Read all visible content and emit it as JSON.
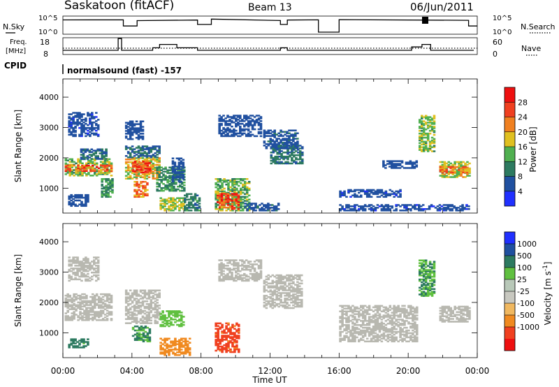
{
  "header": {
    "title": "Saskatoon (fitACF)",
    "beam": "Beam 13",
    "date": "06/Jun/2011"
  },
  "status_panels": {
    "nsky_label": "N.Sky",
    "nsky_ticks": [
      "10^5",
      "10^0"
    ],
    "nsearch_label": "N.Search",
    "nsearch_ticks": [
      "10^5",
      "10^0"
    ],
    "freq_label_1": "Freq.",
    "freq_label_2": "[MHz]",
    "freq_ticks": [
      "18",
      "8"
    ],
    "nave_label": "Nave",
    "nave_ticks": [
      "60",
      "0"
    ],
    "cpid_label": "CPID",
    "cpid_text": "normalsound (fast) -157"
  },
  "colors": {
    "power": [
      "#2030ff",
      "#2050a0",
      "#2d7a60",
      "#50b050",
      "#e0c020",
      "#f08020",
      "#f04020",
      "#ee1010"
    ],
    "velocity": [
      "#ee1010",
      "#f04020",
      "#f08a20",
      "#f0b860",
      "#c8c8c0",
      "#b8c8b8",
      "#60c040",
      "#2d7a60",
      "#2050a0",
      "#2030ff"
    ],
    "ground_scatter": "#b8b8b0"
  },
  "chart_data": [
    {
      "type": "heatmap",
      "name": "Power",
      "xlabel": "",
      "ylabel": "Slant Range [km]",
      "x_ticks": [
        "00:00",
        "04:00",
        "08:00",
        "12:00",
        "16:00",
        "20:00",
        "00:00"
      ],
      "y_ticks": [
        1000,
        2000,
        3000,
        4000
      ],
      "xlim_hours": [
        0,
        24
      ],
      "ylim_km": [
        180,
        4600
      ],
      "colorbar": {
        "label": "Power [dB]",
        "ticks": [
          4,
          8,
          12,
          16,
          20,
          24,
          28
        ],
        "range": [
          0,
          32
        ]
      },
      "regions": [
        {
          "t": [
            0.1,
            2.8
          ],
          "r": [
            1400,
            1950
          ],
          "v": 15
        },
        {
          "t": [
            0.1,
            2.8
          ],
          "r": [
            1550,
            1750
          ],
          "v": 25
        },
        {
          "t": [
            1.0,
            2.5
          ],
          "r": [
            1950,
            2300
          ],
          "v": 8
        },
        {
          "t": [
            0.3,
            2.0
          ],
          "r": [
            2700,
            3500
          ],
          "v": 5
        },
        {
          "t": [
            2.2,
            2.9
          ],
          "r": [
            700,
            1300
          ],
          "v": 12
        },
        {
          "t": [
            0.3,
            1.5
          ],
          "r": [
            400,
            800
          ],
          "v": 6
        },
        {
          "t": [
            3.6,
            5.6
          ],
          "r": [
            1300,
            2000
          ],
          "v": 18
        },
        {
          "t": [
            4.0,
            5.0
          ],
          "r": [
            1500,
            1900
          ],
          "v": 27
        },
        {
          "t": [
            3.6,
            5.6
          ],
          "r": [
            2000,
            2400
          ],
          "v": 8
        },
        {
          "t": [
            3.6,
            4.6
          ],
          "r": [
            2600,
            3200
          ],
          "v": 6
        },
        {
          "t": [
            4.1,
            4.9
          ],
          "r": [
            700,
            1200
          ],
          "v": 22
        },
        {
          "t": [
            5.4,
            7.0
          ],
          "r": [
            900,
            1700
          ],
          "v": 11
        },
        {
          "t": [
            5.6,
            7.0
          ],
          "r": [
            250,
            700
          ],
          "v": 16
        },
        {
          "t": [
            6.3,
            7.0
          ],
          "r": [
            1200,
            2000
          ],
          "v": 6
        },
        {
          "t": [
            7.0,
            7.9
          ],
          "r": [
            250,
            800
          ],
          "v": 10
        },
        {
          "t": [
            8.8,
            10.8
          ],
          "r": [
            250,
            1300
          ],
          "v": 14
        },
        {
          "t": [
            8.9,
            10.2
          ],
          "r": [
            300,
            800
          ],
          "v": 26
        },
        {
          "t": [
            9.0,
            11.5
          ],
          "r": [
            2700,
            3400
          ],
          "v": 6
        },
        {
          "t": [
            10.5,
            12.5
          ],
          "r": [
            250,
            500
          ],
          "v": 7
        },
        {
          "t": [
            12.0,
            13.8
          ],
          "r": [
            1800,
            2400
          ],
          "v": 9
        },
        {
          "t": [
            11.6,
            13.6
          ],
          "r": [
            2300,
            2900
          ],
          "v": 7
        },
        {
          "t": [
            16.0,
            19.5
          ],
          "r": [
            700,
            950
          ],
          "v": 5
        },
        {
          "t": [
            18.5,
            20.5
          ],
          "r": [
            1650,
            1900
          ],
          "v": 6
        },
        {
          "t": [
            20.6,
            21.5
          ],
          "r": [
            2200,
            3400
          ],
          "v": 15
        },
        {
          "t": [
            21.8,
            23.5
          ],
          "r": [
            1350,
            1850
          ],
          "v": 17
        },
        {
          "t": [
            21.8,
            23.5
          ],
          "r": [
            1500,
            1700
          ],
          "v": 22
        },
        {
          "t": [
            16.0,
            23.5
          ],
          "r": [
            250,
            450
          ],
          "v": 5
        }
      ]
    },
    {
      "type": "heatmap",
      "name": "Velocity",
      "xlabel": "Time UT",
      "ylabel": "Slant Range [km]",
      "x_ticks": [
        "00:00",
        "04:00",
        "08:00",
        "12:00",
        "16:00",
        "20:00",
        "00:00"
      ],
      "y_ticks": [
        1000,
        2000,
        3000,
        4000
      ],
      "xlim_hours": [
        0,
        24
      ],
      "ylim_km": [
        180,
        4600
      ],
      "colorbar": {
        "label": "Velocity [m s",
        "ticks": [
          "1000",
          "500",
          "100",
          "25",
          "-25",
          "-100",
          "-500",
          "-1000"
        ]
      },
      "regions": [
        {
          "t": [
            0.1,
            2.8
          ],
          "r": [
            1400,
            2300
          ],
          "v": 10
        },
        {
          "t": [
            0.3,
            1.5
          ],
          "r": [
            500,
            800
          ],
          "v": 250
        },
        {
          "t": [
            0.3,
            2.0
          ],
          "r": [
            2700,
            3500
          ],
          "v": 10
        },
        {
          "t": [
            3.6,
            5.6
          ],
          "r": [
            1300,
            2400
          ],
          "v": 10
        },
        {
          "t": [
            4.0,
            5.0
          ],
          "r": [
            700,
            1200
          ],
          "v": 200
        },
        {
          "t": [
            5.6,
            7.0
          ],
          "r": [
            1200,
            1700
          ],
          "v": 150
        },
        {
          "t": [
            5.6,
            7.4
          ],
          "r": [
            250,
            800
          ],
          "v": -150
        },
        {
          "t": [
            8.8,
            10.2
          ],
          "r": [
            350,
            1300
          ],
          "v": -250
        },
        {
          "t": [
            9.0,
            11.5
          ],
          "r": [
            2700,
            3400
          ],
          "v": 10
        },
        {
          "t": [
            11.6,
            13.8
          ],
          "r": [
            1800,
            2900
          ],
          "v": 10
        },
        {
          "t": [
            16.0,
            20.5
          ],
          "r": [
            700,
            1900
          ],
          "v": 10
        },
        {
          "t": [
            20.6,
            21.5
          ],
          "r": [
            2200,
            3400
          ],
          "v": 200
        },
        {
          "t": [
            21.8,
            23.5
          ],
          "r": [
            1350,
            1850
          ],
          "v": 10
        }
      ]
    }
  ]
}
